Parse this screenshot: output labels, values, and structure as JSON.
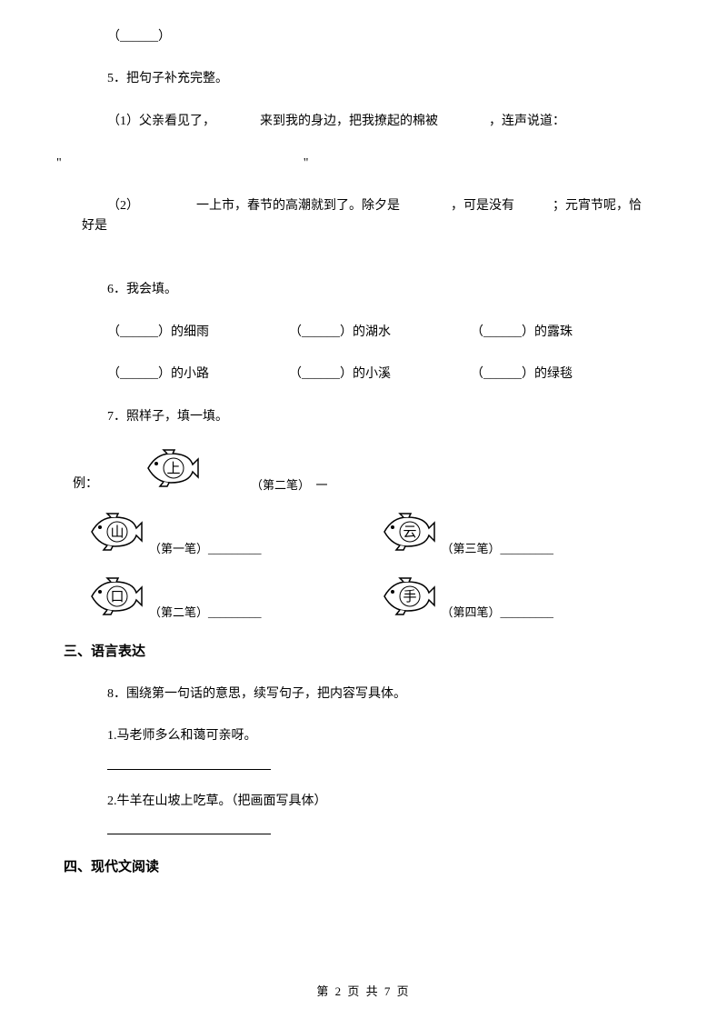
{
  "top_blank": "（______）",
  "q5": {
    "title": "5．把句子补充完整。",
    "item1": "（1）父亲看见了，　　　　来到我的身边，把我撩起的棉被　　　　，连声说道：",
    "item1_quote": "\"　　　　　　　　　　　　　　　　　　　\"",
    "item2": "（2）　　　　　一上市，春节的高潮就到了。除夕是　　　　，可是没有　　　；元宵节呢，恰好是"
  },
  "q6": {
    "title": "6．我会填。",
    "row1": [
      "（______）的细雨",
      "（______）的湖水",
      "（______）的露珠"
    ],
    "row2": [
      "（______）的小路",
      "（______）的小溪",
      "（______）的绿毯"
    ]
  },
  "q7": {
    "title": "7．照样子，填一填。",
    "example_label": "例：",
    "example_char": "上",
    "example_stroke": "（第二笔）　一",
    "fish": [
      {
        "char": "山",
        "stroke": "（第一笔）_________"
      },
      {
        "char": "云",
        "stroke": "（第三笔）_________"
      },
      {
        "char": "口",
        "stroke": "（第二笔）_________"
      },
      {
        "char": "手",
        "stroke": "（第四笔）_________"
      }
    ]
  },
  "section3": "三、语言表达",
  "q8": {
    "title": "8．围绕第一句话的意思，续写句子，把内容写具体。",
    "item1": "1.马老师多么和蔼可亲呀。",
    "item2": "2.牛羊在山坡上吃草。（把画面写具体）"
  },
  "section4": "四、现代文阅读",
  "footer": "第 2 页 共 7 页",
  "fish_style": {
    "width": 62,
    "height": 42,
    "stroke": "#000000",
    "fill": "#ffffff",
    "stroke_width": 1.5
  }
}
